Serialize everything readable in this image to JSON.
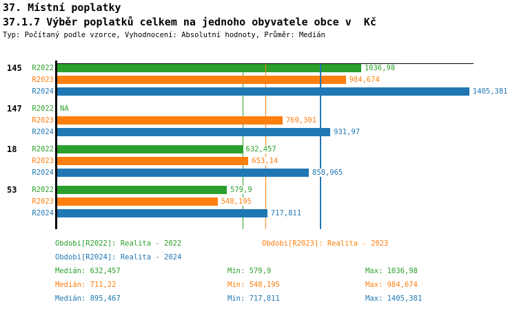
{
  "header": {
    "title": "37. Místní poplatky",
    "subtitle": "37.1.7 Výběr poplatků celkem na jednoho obyvatele obce v  Kč",
    "meta": "Typ: Počítaný podle vzorce, Vyhodnocení: Absolutní hodnoty, Průměr: Medián"
  },
  "colors": {
    "r2022": "#2ca02c",
    "r2023": "#ff7f0e",
    "r2024": "#1f77b4",
    "axis": "#000000"
  },
  "chart_data": {
    "type": "bar",
    "orientation": "horizontal",
    "title": "37.1.7 Výběr poplatků celkem na jednoho obyvatele obce v Kč",
    "unit": "Kč",
    "xlim": [
      0,
      1420
    ],
    "grid": false,
    "series_names": [
      "R2022",
      "R2023",
      "R2024"
    ],
    "groups": [
      {
        "label": "145",
        "bars": [
          {
            "series": "R2022",
            "value": 1036.98,
            "display": "1036,98"
          },
          {
            "series": "R2023",
            "value": 984.674,
            "display": "984,674"
          },
          {
            "series": "R2024",
            "value": 1405.381,
            "display": "1405,381"
          }
        ]
      },
      {
        "label": "147",
        "bars": [
          {
            "series": "R2022",
            "value": null,
            "display": "NA"
          },
          {
            "series": "R2023",
            "value": 769.301,
            "display": "769,301"
          },
          {
            "series": "R2024",
            "value": 931.97,
            "display": "931,97"
          }
        ]
      },
      {
        "label": "18",
        "bars": [
          {
            "series": "R2022",
            "value": 632.457,
            "display": "632,457"
          },
          {
            "series": "R2023",
            "value": 653.14,
            "display": "653,14"
          },
          {
            "series": "R2024",
            "value": 858.965,
            "display": "858,965"
          }
        ]
      },
      {
        "label": "53",
        "bars": [
          {
            "series": "R2022",
            "value": 579.9,
            "display": "579,9"
          },
          {
            "series": "R2023",
            "value": 548.195,
            "display": "548,195"
          },
          {
            "series": "R2024",
            "value": 717.811,
            "display": "717,811"
          }
        ]
      }
    ],
    "median_lines": {
      "R2022": 632.457,
      "R2023": 711.22,
      "R2024": 895.467
    }
  },
  "legend": {
    "r2022": "Období[R2022]: Realita - 2022",
    "r2023": "Období[R2023]: Realita - 2023",
    "r2024": "Období[R2024]: Realita - 2024"
  },
  "stats": [
    {
      "series": "R2022",
      "median": "Medián: 632,457",
      "min": "Min: 579,9",
      "max": "Max: 1036,98"
    },
    {
      "series": "R2023",
      "median": "Medián: 711,22",
      "min": "Min: 548,195",
      "max": "Max: 984,674"
    },
    {
      "series": "R2024",
      "median": "Medián: 895,467",
      "min": "Min: 717,811",
      "max": "Max: 1405,381"
    }
  ]
}
